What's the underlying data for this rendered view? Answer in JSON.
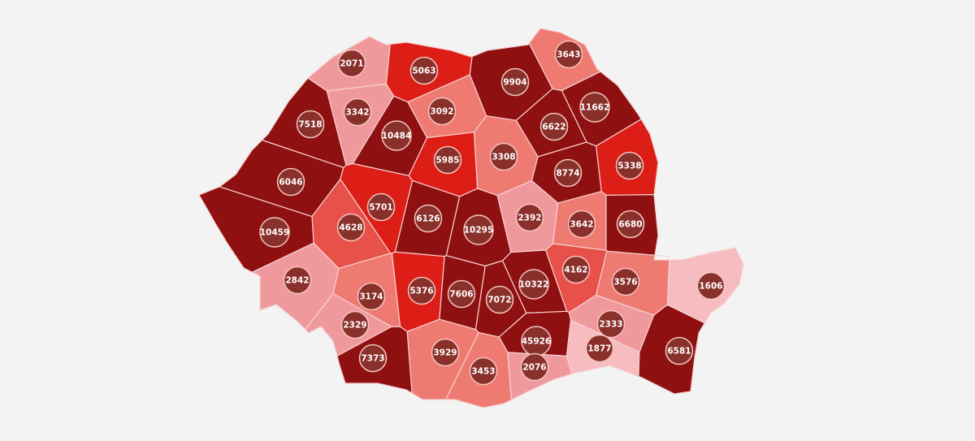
{
  "colors": {
    "background": "#f3f3f3",
    "dark": "#8f1010",
    "red": "#dc1e16",
    "medium_red": "#e8504a",
    "medium": "#ee7a72",
    "pink": "#f0999d",
    "light": "#f6bcc0",
    "badge": "#8a302b"
  },
  "map": {
    "counties": [
      {
        "value": "2071",
        "color": "pink"
      },
      {
        "value": "5063",
        "color": "red"
      },
      {
        "value": "3643",
        "color": "medium"
      },
      {
        "value": "9904",
        "color": "dark"
      },
      {
        "value": "3342",
        "color": "pink"
      },
      {
        "value": "3092",
        "color": "medium"
      },
      {
        "value": "11662",
        "color": "dark"
      },
      {
        "value": "7518",
        "color": "dark"
      },
      {
        "value": "10484",
        "color": "dark"
      },
      {
        "value": "6622",
        "color": "dark"
      },
      {
        "value": "5985",
        "color": "red"
      },
      {
        "value": "3308",
        "color": "medium"
      },
      {
        "value": "5338",
        "color": "red"
      },
      {
        "value": "8774",
        "color": "dark"
      },
      {
        "value": "6046",
        "color": "dark"
      },
      {
        "value": "5701",
        "color": "red"
      },
      {
        "value": "6126",
        "color": "dark"
      },
      {
        "value": "10295",
        "color": "dark"
      },
      {
        "value": "2392",
        "color": "pink"
      },
      {
        "value": "3642",
        "color": "medium"
      },
      {
        "value": "6680",
        "color": "dark"
      },
      {
        "value": "4628",
        "color": "medium_red"
      },
      {
        "value": "10459",
        "color": "dark"
      },
      {
        "value": "4162",
        "color": "medium_red"
      },
      {
        "value": "3576",
        "color": "medium"
      },
      {
        "value": "1606",
        "color": "light"
      },
      {
        "value": "2842",
        "color": "pink"
      },
      {
        "value": "3174",
        "color": "medium"
      },
      {
        "value": "5376",
        "color": "red"
      },
      {
        "value": "7606",
        "color": "dark"
      },
      {
        "value": "7072",
        "color": "dark"
      },
      {
        "value": "10322",
        "color": "dark"
      },
      {
        "value": "2329",
        "color": "pink"
      },
      {
        "value": "2333",
        "color": "pink"
      },
      {
        "value": "45926",
        "color": "dark"
      },
      {
        "value": "1877",
        "color": "light"
      },
      {
        "value": "6581",
        "color": "dark"
      },
      {
        "value": "7373",
        "color": "dark"
      },
      {
        "value": "3929",
        "color": "medium"
      },
      {
        "value": "3453",
        "color": "medium"
      },
      {
        "value": "2076",
        "color": "pink"
      }
    ]
  }
}
